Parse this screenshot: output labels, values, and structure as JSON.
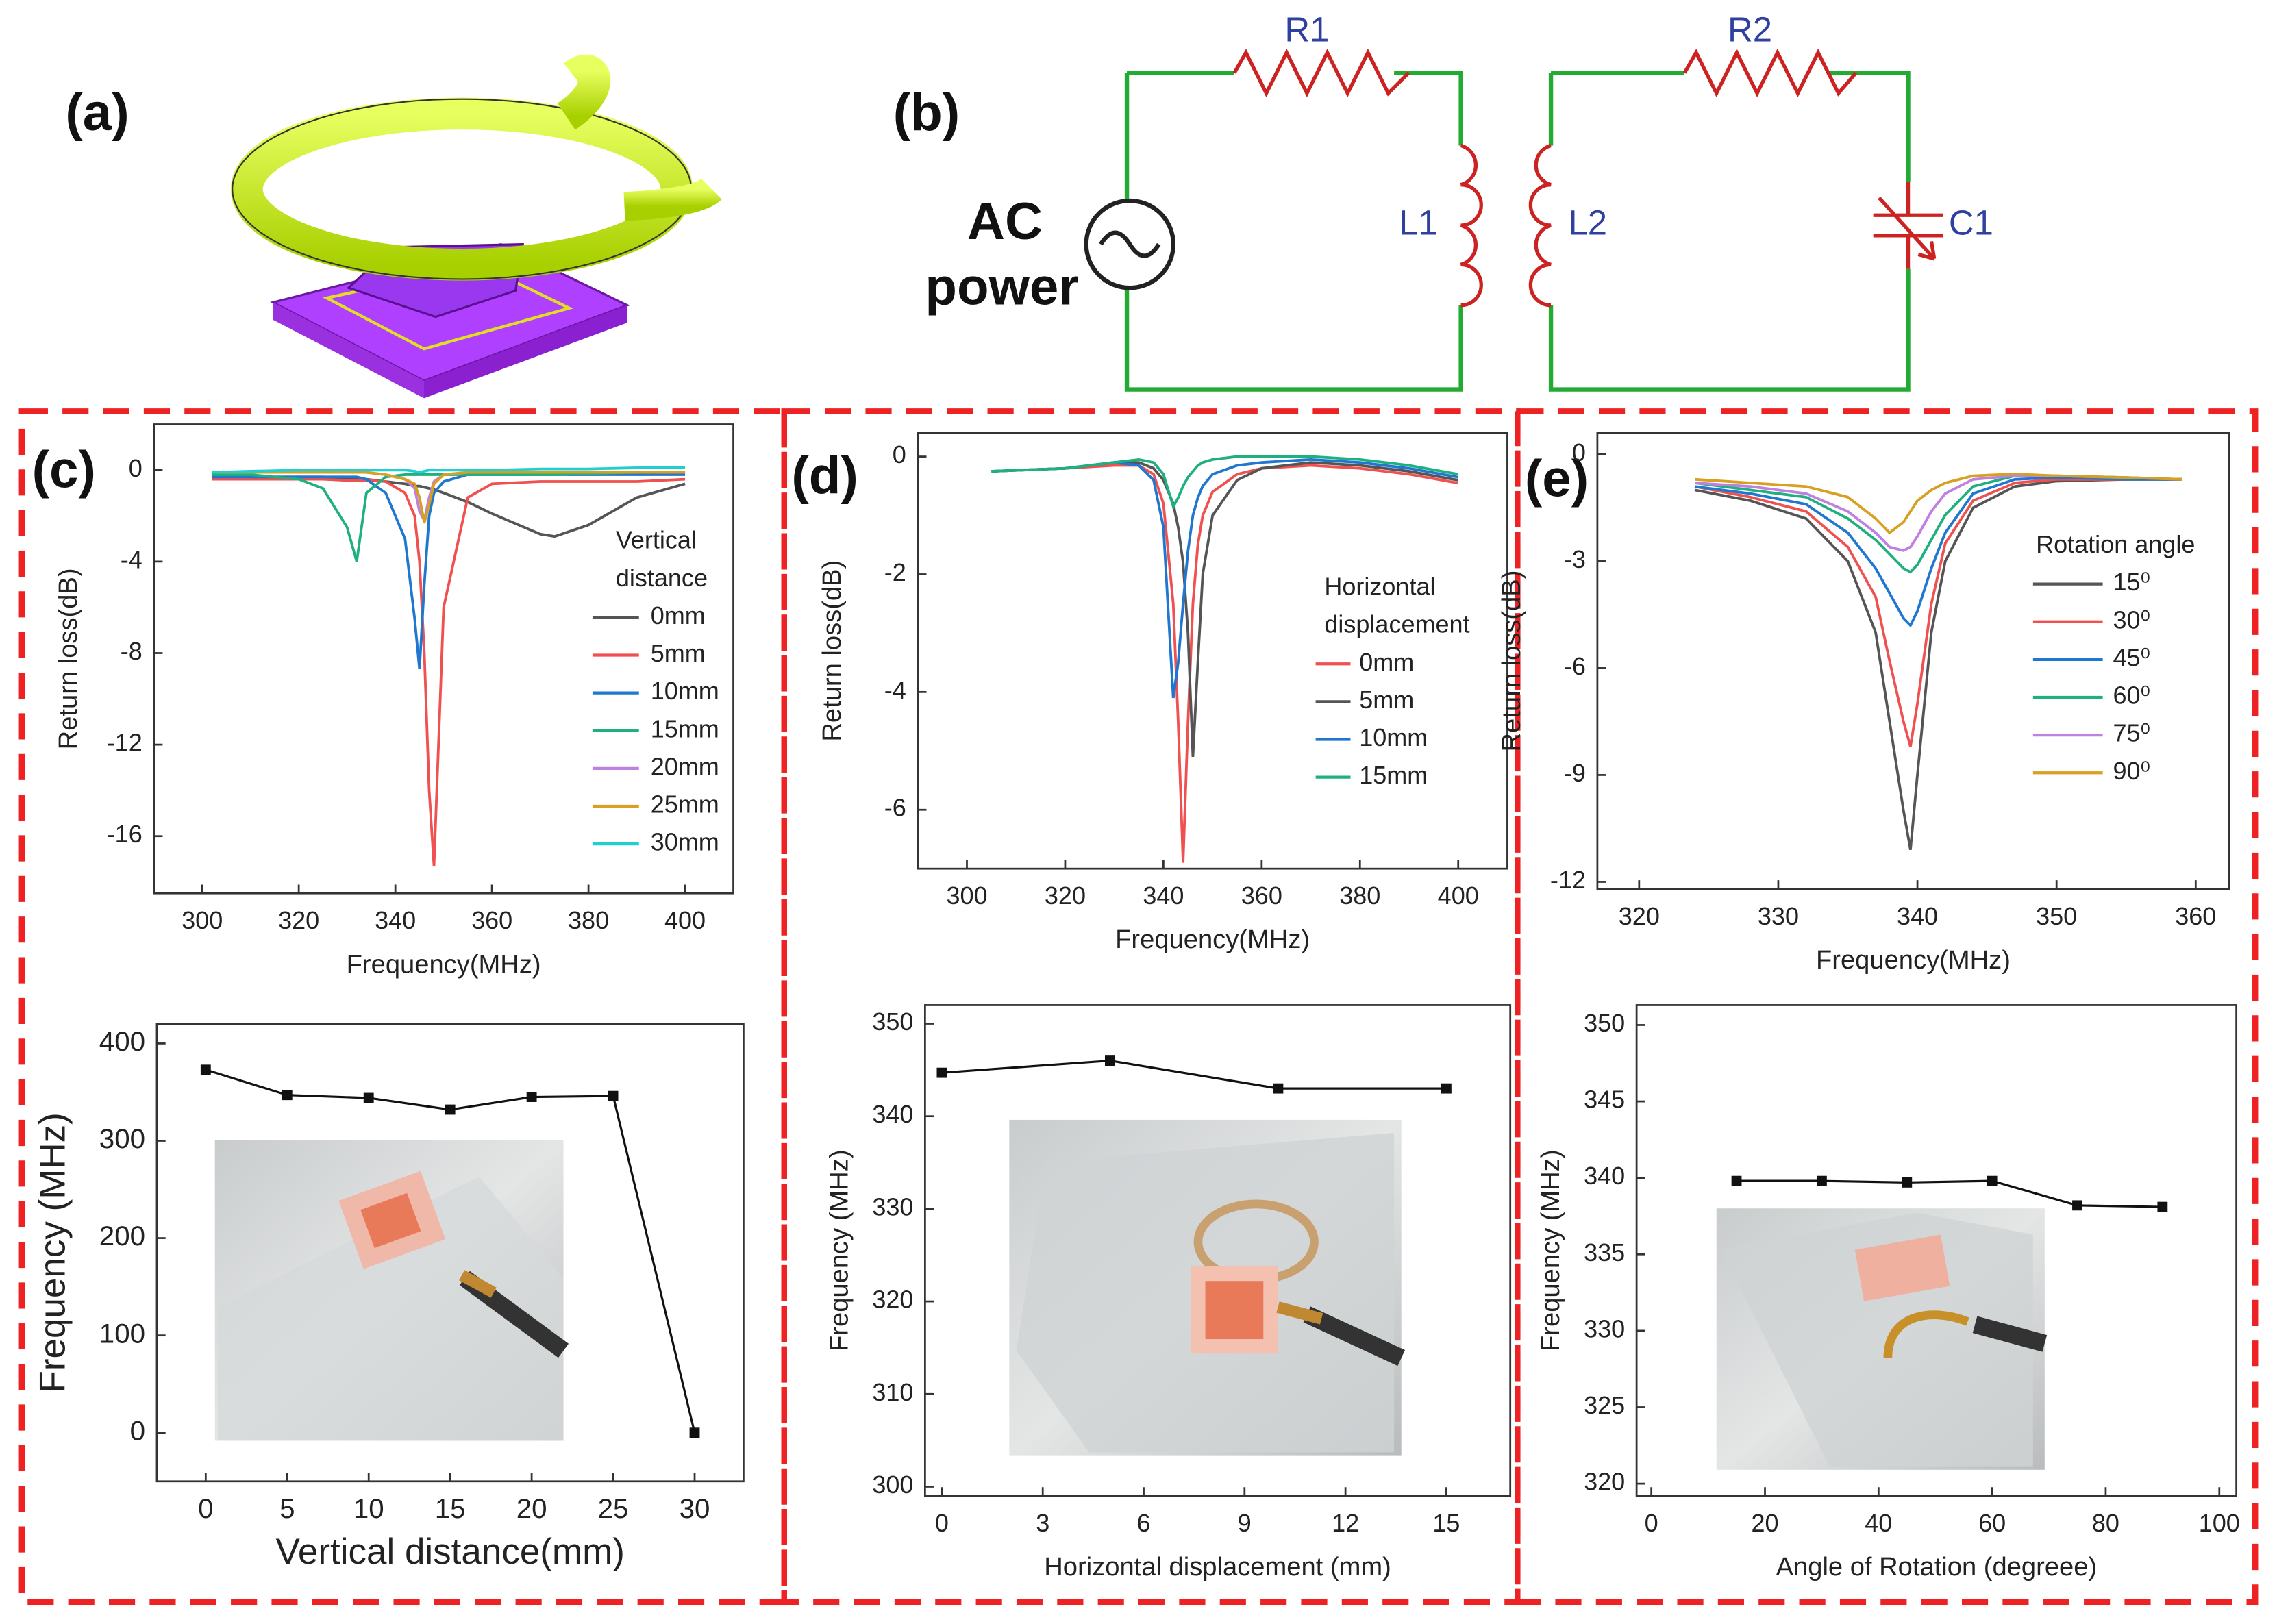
{
  "panels": [
    "(a)",
    "(b)",
    "(c)",
    "(d)",
    "(e)"
  ],
  "circuit": {
    "r1": "R1",
    "r2": "R2",
    "l1": "L1",
    "l2": "L2",
    "c1": "C1",
    "source": [
      "AC",
      "power"
    ]
  },
  "chart_data": [
    {
      "type": "line",
      "xlabel": "Frequency(MHz)",
      "ylabel": "Return loss(dB)",
      "xlim": [
        290,
        410
      ],
      "ylim": [
        -18.5,
        2
      ],
      "xticks": [
        300,
        320,
        340,
        360,
        380,
        400
      ],
      "yticks": [
        0,
        -4,
        -8,
        -12,
        -16
      ],
      "legend": "right",
      "legend_title": [
        "Vertical",
        "distance"
      ],
      "x": [
        302,
        310,
        320,
        325,
        330,
        332,
        334,
        338,
        342,
        344,
        345,
        346,
        347,
        348,
        350,
        355,
        360,
        370,
        373,
        380,
        390,
        400
      ],
      "series": [
        {
          "name": "0mm",
          "color": "#555555",
          "values": [
            -0.3,
            -0.3,
            -0.3,
            -0.3,
            -0.35,
            -0.4,
            -0.4,
            -0.5,
            -0.6,
            -0.7,
            -0.7,
            -0.75,
            -0.8,
            -0.85,
            -1.0,
            -1.4,
            -1.9,
            -2.8,
            -2.9,
            -2.4,
            -1.2,
            -0.6
          ]
        },
        {
          "name": "5mm",
          "color": "#f05050",
          "values": [
            -0.4,
            -0.4,
            -0.4,
            -0.4,
            -0.45,
            -0.45,
            -0.45,
            -0.5,
            -1.0,
            -2,
            -4,
            -8,
            -14,
            -17.3,
            -6,
            -1.2,
            -0.6,
            -0.5,
            -0.5,
            -0.5,
            -0.5,
            -0.4
          ]
        },
        {
          "name": "10mm",
          "color": "#1f77d0",
          "values": [
            -0.3,
            -0.3,
            -0.3,
            -0.3,
            -0.3,
            -0.3,
            -0.4,
            -1.0,
            -3,
            -6.5,
            -8.7,
            -5,
            -2,
            -1,
            -0.5,
            -0.2,
            -0.2,
            -0.2,
            -0.2,
            -0.2,
            -0.2,
            -0.2
          ]
        },
        {
          "name": "15mm",
          "color": "#20b080",
          "values": [
            -0.2,
            -0.2,
            -0.4,
            -0.8,
            -2.5,
            -4.0,
            -1,
            -0.3,
            -0.2,
            -0.2,
            -0.2,
            -0.2,
            -0.2,
            -0.2,
            -0.2,
            -0.2,
            -0.2,
            -0.2,
            -0.2,
            -0.15,
            -0.1,
            -0.1
          ]
        },
        {
          "name": "20mm",
          "color": "#c080e0",
          "values": [
            -0.1,
            -0.1,
            -0.1,
            -0.1,
            -0.1,
            -0.1,
            -0.1,
            -0.2,
            -0.4,
            -0.8,
            -1.8,
            -2.2,
            -1.2,
            -0.5,
            -0.2,
            -0.1,
            -0.1,
            -0.1,
            -0.1,
            -0.1,
            -0.1,
            -0.1
          ]
        },
        {
          "name": "25mm",
          "color": "#d8a020",
          "values": [
            -0.1,
            -0.1,
            -0.1,
            -0.1,
            -0.1,
            -0.1,
            -0.1,
            -0.2,
            -0.4,
            -0.6,
            -1.2,
            -2.3,
            -1.5,
            -0.6,
            -0.2,
            -0.1,
            -0.1,
            -0.1,
            -0.1,
            -0.1,
            -0.1,
            -0.1
          ]
        },
        {
          "name": "30mm",
          "color": "#20d0d0",
          "values": [
            -0.1,
            -0.05,
            0,
            0,
            0,
            0,
            0,
            0,
            0,
            -0.05,
            -0.1,
            -0.05,
            0,
            0,
            0,
            0,
            0,
            0.05,
            0.05,
            0.05,
            0.1,
            0.1
          ]
        }
      ]
    },
    {
      "type": "line",
      "markers": true,
      "xlabel": "Vertical distance(mm)",
      "ylabel": "Frequency (MHz)",
      "color": "#111111",
      "xlim": [
        -3,
        33
      ],
      "ylim": [
        -50,
        420
      ],
      "xticks": [
        0,
        5,
        10,
        15,
        20,
        25,
        30
      ],
      "yticks": [
        0,
        100,
        200,
        300,
        400
      ],
      "x": [
        0,
        5,
        10,
        15,
        20,
        25,
        30
      ],
      "values": [
        373,
        347,
        344,
        332,
        345,
        346,
        0
      ]
    },
    {
      "type": "line",
      "xlabel": "Frequency(MHz)",
      "ylabel": "Return loss(dB)",
      "xlim": [
        290,
        410
      ],
      "ylim": [
        -7,
        0.4
      ],
      "xticks": [
        300,
        320,
        340,
        360,
        380,
        400
      ],
      "yticks": [
        0,
        -2,
        -4,
        -6
      ],
      "legend": "right",
      "legend_title": [
        "Horizontal",
        "displacement"
      ],
      "x": [
        305,
        320,
        330,
        335,
        338,
        340,
        342,
        343,
        344,
        345,
        346,
        347,
        348,
        350,
        355,
        360,
        370,
        380,
        390,
        400
      ],
      "series": [
        {
          "name": "0mm",
          "color": "#f05050",
          "values": [
            -0.25,
            -0.2,
            -0.15,
            -0.15,
            -0.3,
            -0.8,
            -2.5,
            -4.5,
            -6.9,
            -4.5,
            -2.5,
            -1.5,
            -1.0,
            -0.6,
            -0.3,
            -0.2,
            -0.15,
            -0.2,
            -0.3,
            -0.45
          ]
        },
        {
          "name": "5mm",
          "color": "#555555",
          "values": [
            -0.25,
            -0.2,
            -0.1,
            -0.1,
            -0.2,
            -0.4,
            -0.8,
            -1.2,
            -1.8,
            -3,
            -5.1,
            -3.5,
            -2,
            -1,
            -0.4,
            -0.2,
            -0.1,
            -0.15,
            -0.25,
            -0.4
          ]
        },
        {
          "name": "10mm",
          "color": "#1f77d0",
          "values": [
            -0.25,
            -0.2,
            -0.1,
            -0.15,
            -0.4,
            -1.2,
            -4.1,
            -3.5,
            -2.5,
            -1.6,
            -1.0,
            -0.7,
            -0.5,
            -0.3,
            -0.15,
            -0.1,
            -0.05,
            -0.1,
            -0.2,
            -0.35
          ]
        },
        {
          "name": "15mm",
          "color": "#20b080",
          "values": [
            -0.25,
            -0.2,
            -0.1,
            -0.05,
            -0.1,
            -0.3,
            -0.85,
            -0.7,
            -0.5,
            -0.35,
            -0.25,
            -0.15,
            -0.1,
            -0.05,
            0,
            0,
            0,
            -0.05,
            -0.15,
            -0.3
          ]
        }
      ]
    },
    {
      "type": "line",
      "markers": true,
      "xlabel": "Horizontal displacement (mm)",
      "ylabel": "Frequency (MHz)",
      "color": "#111111",
      "xlim": [
        -0.5,
        16.9
      ],
      "ylim": [
        299,
        352
      ],
      "xticks": [
        0,
        3,
        6,
        9,
        12,
        15
      ],
      "yticks": [
        300,
        310,
        320,
        330,
        340,
        350
      ],
      "x": [
        0,
        5,
        10,
        15
      ],
      "values": [
        344.7,
        346,
        343,
        343
      ]
    },
    {
      "type": "line",
      "xlabel": "Frequency(MHz)",
      "ylabel": "Return loss(dB)",
      "xlim": [
        317,
        362.4
      ],
      "ylim": [
        -12.2,
        0.6
      ],
      "xticks": [
        320,
        330,
        340,
        350,
        360
      ],
      "yticks": [
        0,
        -3,
        -6,
        -9,
        -12
      ],
      "legend": "right",
      "legend_title": [
        "Rotation angle"
      ],
      "x": [
        324,
        328,
        332,
        335,
        337,
        338,
        339,
        339.5,
        340,
        341,
        342,
        344,
        347,
        350,
        355,
        359
      ],
      "series": [
        {
          "name": "15⁰",
          "color": "#555555",
          "values": [
            -1,
            -1.3,
            -1.8,
            -3,
            -5,
            -7.5,
            -10,
            -11.1,
            -9,
            -5,
            -3,
            -1.5,
            -0.9,
            -0.75,
            -0.7,
            -0.7
          ]
        },
        {
          "name": "30⁰",
          "color": "#f05050",
          "values": [
            -0.9,
            -1.2,
            -1.6,
            -2.6,
            -4,
            -5.8,
            -7.5,
            -8.2,
            -7,
            -4.2,
            -2.5,
            -1.3,
            -0.8,
            -0.7,
            -0.7,
            -0.7
          ]
        },
        {
          "name": "45⁰",
          "color": "#1f77d0",
          "values": [
            -0.9,
            -1.1,
            -1.4,
            -2.2,
            -3.2,
            -3.9,
            -4.6,
            -4.8,
            -4.4,
            -3.2,
            -2.2,
            -1.1,
            -0.7,
            -0.65,
            -0.7,
            -0.7
          ]
        },
        {
          "name": "60⁰",
          "color": "#20b080",
          "values": [
            -0.8,
            -1,
            -1.2,
            -1.8,
            -2.4,
            -2.8,
            -3.2,
            -3.3,
            -3.1,
            -2.4,
            -1.7,
            -0.9,
            -0.6,
            -0.6,
            -0.65,
            -0.7
          ]
        },
        {
          "name": "75⁰",
          "color": "#c080e0",
          "values": [
            -0.8,
            -0.9,
            -1.1,
            -1.6,
            -2.2,
            -2.6,
            -2.7,
            -2.6,
            -2.3,
            -1.6,
            -1.1,
            -0.7,
            -0.6,
            -0.6,
            -0.65,
            -0.7
          ]
        },
        {
          "name": "90⁰",
          "color": "#d8a020",
          "values": [
            -0.7,
            -0.8,
            -0.9,
            -1.2,
            -1.8,
            -2.2,
            -1.9,
            -1.6,
            -1.3,
            -1,
            -0.8,
            -0.6,
            -0.55,
            -0.6,
            -0.65,
            -0.7
          ]
        }
      ]
    },
    {
      "type": "line",
      "markers": true,
      "xlabel": "Angle of Rotation (degreee)",
      "ylabel": "Frequency (MHz)",
      "color": "#111111",
      "xlim": [
        -2.6,
        103
      ],
      "ylim": [
        319.2,
        351.3
      ],
      "xticks": [
        0,
        20,
        40,
        60,
        80,
        100
      ],
      "yticks": [
        320,
        325,
        330,
        335,
        340,
        345,
        350
      ],
      "x": [
        15,
        30,
        45,
        60,
        75,
        90
      ],
      "values": [
        339.8,
        339.8,
        339.7,
        339.8,
        338.2,
        338.1
      ]
    }
  ]
}
